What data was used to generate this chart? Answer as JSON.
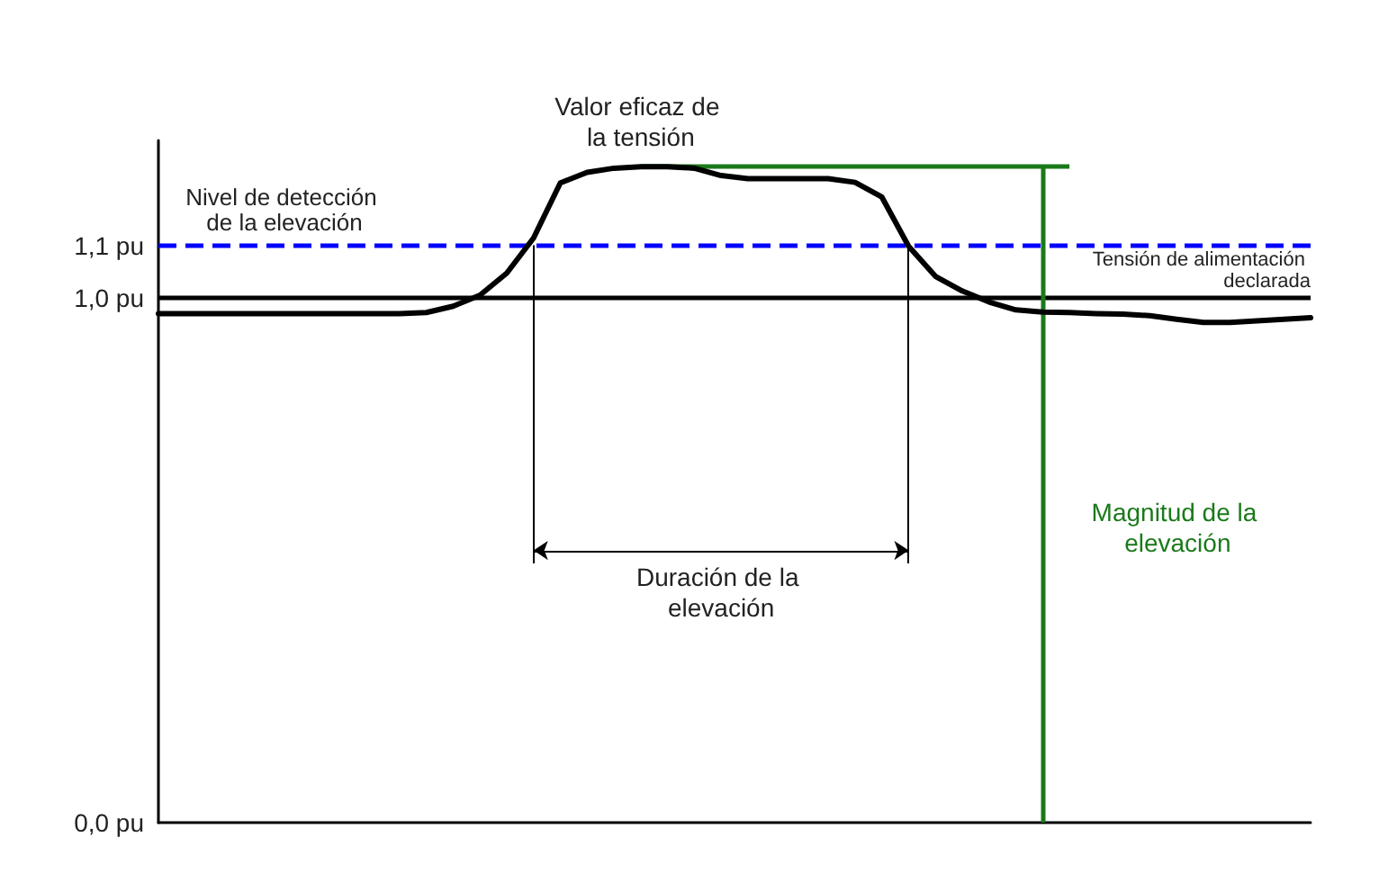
{
  "chart_data": {
    "type": "line",
    "categories": [
      null,
      null,
      null,
      null,
      null,
      null,
      null,
      null,
      null,
      null,
      null,
      null,
      null,
      null,
      null,
      null,
      null,
      null,
      null,
      null,
      null,
      null,
      null,
      null,
      null,
      null,
      null,
      null,
      null,
      null,
      null,
      null,
      null,
      null,
      null,
      null,
      null,
      null,
      null,
      null,
      null,
      null,
      null,
      null
    ],
    "series": [
      {
        "color": "#000000",
        "values": [
          0.97,
          0.97,
          0.97,
          0.97,
          0.97,
          0.97,
          0.97,
          0.97,
          0.97,
          0.97,
          0.972,
          0.984,
          1.005,
          1.047,
          1.114,
          1.219,
          1.239,
          1.247,
          1.25,
          1.25,
          1.247,
          1.233,
          1.227,
          1.227,
          1.227,
          1.227,
          1.22,
          1.192,
          1.098,
          1.041,
          1.013,
          0.992,
          0.977,
          0.973,
          0.972,
          0.97,
          0.969,
          0.966,
          0.959,
          0.953,
          0.953,
          0.956,
          0.959,
          0.962
        ]
      }
    ],
    "ylim": [
      0,
      1.3
    ],
    "yticks": [
      {
        "value": 0,
        "label": "0,0 pu"
      },
      {
        "value": 1.0,
        "label": "1,0 pu"
      },
      {
        "value": 1.1,
        "label": "1,1 pu"
      }
    ],
    "tick_labels": "y",
    "grid": false,
    "marker": "none",
    "ref_lines": [
      {
        "axis": "y",
        "value": 1.1,
        "label": "Nivel de detección de la elevación",
        "color": "#0000ff",
        "line_style": "dashed"
      },
      {
        "axis": "y",
        "value": 1.0,
        "label": "Tensión de alimentación declarada",
        "color": "#000000",
        "line_style": "solid"
      },
      {
        "axis": "y",
        "value": 1.25,
        "label": "Magnitud de la elevación",
        "color": "#1a7a1a",
        "line_style": "solid"
      }
    ],
    "annotations": [
      "Valor eficaz de la tensión",
      "Duración de la elevación"
    ]
  }
}
